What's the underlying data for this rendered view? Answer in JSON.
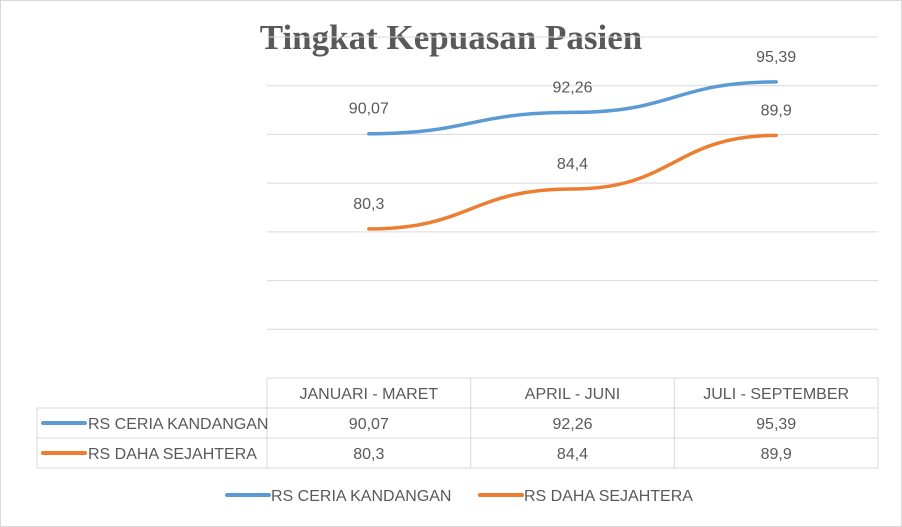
{
  "chart_data": {
    "type": "line",
    "title": "Tingkat Kepuasan Pasien",
    "categories": [
      "JANUARI - MARET",
      "APRIL - JUNI",
      "JULI - SEPTEMBER"
    ],
    "series": [
      {
        "name": "RS CERIA KANDANGAN",
        "values": [
          90.07,
          92.26,
          95.39
        ],
        "labels": [
          "90,07",
          "92,26",
          "95,39"
        ],
        "color": "#5b9bd5"
      },
      {
        "name": "RS DAHA SEJAHTERA",
        "values": [
          80.3,
          84.4,
          89.9
        ],
        "labels": [
          "80,3",
          "84,4",
          "89,9"
        ],
        "color": "#ed7d31"
      }
    ],
    "ylim": [
      65,
      100
    ],
    "grid": true,
    "data_table": true,
    "legend_position": "bottom"
  }
}
